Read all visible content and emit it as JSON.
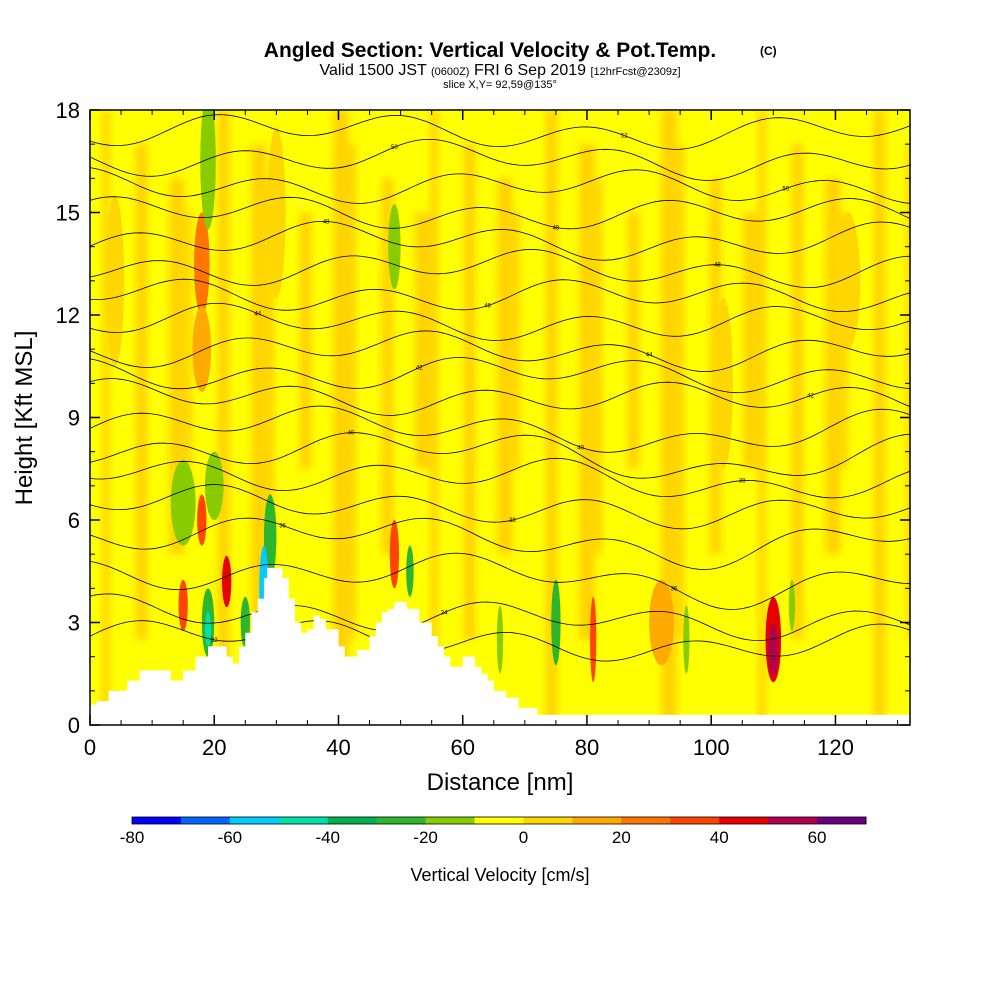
{
  "chart_data": {
    "type": "heatmap",
    "title": "Angled Section: Vertical Velocity & Pot.Temp.",
    "title_units": "(C)",
    "subtitle": {
      "valid": "Valid 1500 JST",
      "utc": "(0600Z)",
      "date": "FRI 6 Sep 2019",
      "forecast": "[12hrFcst@2309z]",
      "slice": "slice X,Y= 92,59@135°"
    },
    "xlabel": "Distance [nm]",
    "ylabel": "Height [Kft MSL]",
    "xlim": [
      0,
      132
    ],
    "ylim": [
      0,
      18
    ],
    "x_ticks": [
      "0",
      "20",
      "40",
      "60",
      "80",
      "100",
      "120"
    ],
    "y_ticks": [
      "0",
      "3",
      "6",
      "9",
      "12",
      "15",
      "18"
    ],
    "colorbar": {
      "label": "Vertical Velocity [cm/s]",
      "tick_labels": [
        "-80",
        "-60",
        "-40",
        "-20",
        "0",
        "20",
        "40",
        "60"
      ],
      "levels": [
        -80,
        -70,
        -60,
        -50,
        -40,
        -30,
        -20,
        -10,
        0,
        10,
        20,
        30,
        40,
        50,
        60,
        70
      ],
      "colors": [
        "#0000ff",
        "#0066ff",
        "#00ccff",
        "#00e0aa",
        "#00b050",
        "#2db52d",
        "#88cc00",
        "#ffff00",
        "#ffd700",
        "#ffaa00",
        "#ff7700",
        "#ff4400",
        "#e60000",
        "#b00050",
        "#6a0080"
      ]
    },
    "background_value_color": "#ffff00",
    "velocity_features": [
      {
        "x": 4,
        "y": 13,
        "w": 3,
        "h": 5,
        "value": 8
      },
      {
        "x": 18,
        "y": 13.5,
        "w": 2.5,
        "h": 3,
        "value": 28
      },
      {
        "x": 18,
        "y": 11,
        "w": 3,
        "h": 2.5,
        "value": 18
      },
      {
        "x": 19,
        "y": 16.5,
        "w": 2.5,
        "h": 4,
        "value": -15
      },
      {
        "x": 49,
        "y": 14,
        "w": 2,
        "h": 2.5,
        "value": -15
      },
      {
        "x": 30,
        "y": 15,
        "w": 3,
        "h": 5,
        "value": 8
      },
      {
        "x": 15,
        "y": 6.5,
        "w": 4,
        "h": 2.5,
        "value": -15
      },
      {
        "x": 20,
        "y": 7,
        "w": 3,
        "h": 2,
        "value": -15
      },
      {
        "x": 18,
        "y": 6,
        "w": 1.5,
        "h": 1.5,
        "value": 35
      },
      {
        "x": 15,
        "y": 3.5,
        "w": 1.5,
        "h": 1.5,
        "value": 35
      },
      {
        "x": 19,
        "y": 3,
        "w": 2,
        "h": 2,
        "value": -30
      },
      {
        "x": 19,
        "y": 2.8,
        "w": 1,
        "h": 1,
        "value": -45
      },
      {
        "x": 22,
        "y": 4.2,
        "w": 1.5,
        "h": 1.5,
        "value": 45
      },
      {
        "x": 25,
        "y": 3,
        "w": 1.5,
        "h": 1.5,
        "value": -30
      },
      {
        "x": 29,
        "y": 5.5,
        "w": 2,
        "h": 2.5,
        "value": -25
      },
      {
        "x": 28,
        "y": 4,
        "w": 1.5,
        "h": 2.5,
        "value": -60
      },
      {
        "x": 49,
        "y": 5,
        "w": 1.5,
        "h": 2,
        "value": 35
      },
      {
        "x": 51.5,
        "y": 4.5,
        "w": 1.2,
        "h": 1.5,
        "value": -25
      },
      {
        "x": 75,
        "y": 3,
        "w": 1.5,
        "h": 2.5,
        "value": -25
      },
      {
        "x": 66,
        "y": 2.5,
        "w": 1,
        "h": 2,
        "value": -15
      },
      {
        "x": 81,
        "y": 2.5,
        "w": 1,
        "h": 2.5,
        "value": 35
      },
      {
        "x": 96,
        "y": 2.5,
        "w": 1,
        "h": 2,
        "value": -15
      },
      {
        "x": 92,
        "y": 3,
        "w": 4,
        "h": 2.5,
        "value": 15
      },
      {
        "x": 110,
        "y": 2.5,
        "w": 2.5,
        "h": 2.5,
        "value": 45
      },
      {
        "x": 110,
        "y": 2.2,
        "w": 1.5,
        "h": 1.5,
        "value": 55
      },
      {
        "x": 113,
        "y": 3.5,
        "w": 1,
        "h": 1.5,
        "value": -15
      },
      {
        "x": 122,
        "y": 13,
        "w": 4,
        "h": 4,
        "value": 8
      },
      {
        "x": 102,
        "y": 10,
        "w": 3,
        "h": 5,
        "value": 8
      }
    ],
    "terrain": {
      "x": [
        0,
        1,
        3,
        6,
        8,
        10,
        13,
        15,
        17,
        19,
        20,
        22,
        23,
        24,
        25,
        26,
        27,
        28,
        28.5,
        31,
        32,
        33,
        34,
        35,
        36,
        37,
        38,
        40,
        41,
        42,
        43,
        45,
        46,
        47,
        48,
        49,
        50,
        51,
        53,
        55,
        56,
        57,
        58,
        59,
        60,
        61,
        62,
        63,
        64,
        65,
        67,
        69,
        72,
        75,
        80,
        85,
        90,
        100,
        110,
        120,
        125,
        132
      ],
      "y": [
        0.6,
        0.7,
        1.0,
        1.3,
        1.6,
        1.6,
        1.3,
        1.6,
        2.0,
        2.3,
        2.3,
        2.0,
        1.8,
        2.3,
        2.7,
        3.3,
        3.7,
        4.3,
        4.6,
        4.3,
        3.7,
        3.0,
        2.7,
        2.8,
        3.2,
        3.1,
        2.8,
        2.3,
        2.0,
        2.0,
        2.2,
        2.6,
        3.0,
        3.3,
        3.4,
        3.6,
        3.6,
        3.4,
        3.0,
        2.6,
        2.3,
        2.0,
        1.7,
        1.7,
        2.0,
        2.0,
        1.7,
        1.5,
        1.3,
        1.0,
        0.8,
        0.5,
        0.3,
        0.3,
        0.3,
        0.3,
        0.3,
        0.3,
        0.3,
        0.3,
        0.3,
        0.3
      ]
    },
    "theta_contours": [
      {
        "label": "32",
        "base": 2.6
      },
      {
        "label": "34",
        "base": 3.3
      },
      {
        "label": "36",
        "base": 4.5
      },
      {
        "label": "36",
        "base": 5.6
      },
      {
        "label": "38",
        "base": 6.5
      },
      {
        "label": "38",
        "base": 7.4
      },
      {
        "label": "40",
        "base": 8.1
      },
      {
        "label": "40",
        "base": 8.8
      },
      {
        "label": "42",
        "base": 9.6
      },
      {
        "label": "42",
        "base": 10.3
      },
      {
        "label": "44",
        "base": 11.0
      },
      {
        "label": "44",
        "base": 11.8
      },
      {
        "label": "46",
        "base": 12.6
      },
      {
        "label": "48",
        "base": 13.4
      },
      {
        "label": "48",
        "base": 14.2
      },
      {
        "label": "48",
        "base": 15.0
      },
      {
        "label": "50",
        "base": 15.8
      },
      {
        "label": "50",
        "base": 16.6
      },
      {
        "label": "52",
        "base": 17.4
      }
    ]
  }
}
